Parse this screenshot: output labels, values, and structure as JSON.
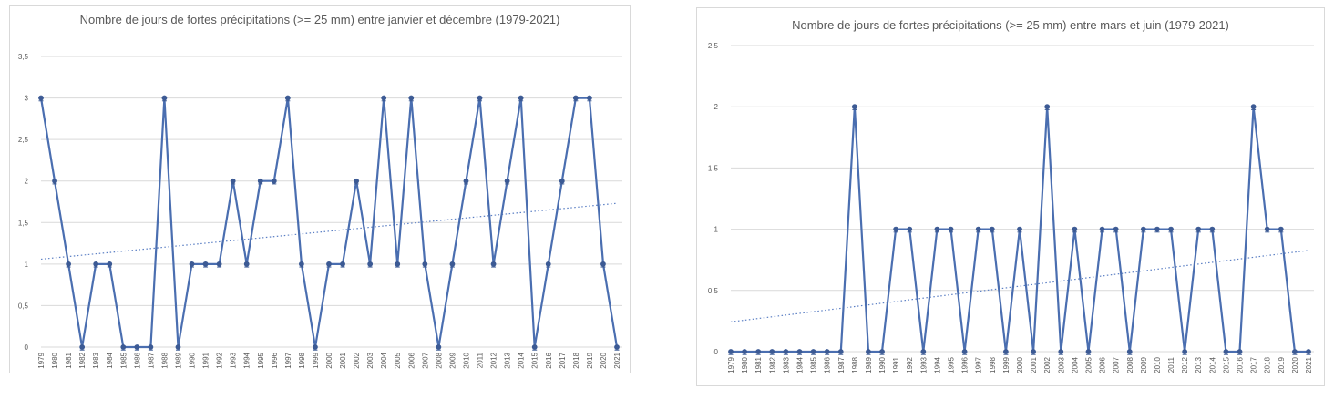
{
  "chart_data": [
    {
      "type": "line",
      "title": "Nombre de jours de fortes précipitations (>= 25 mm) entre janvier et décembre (1979-2021)",
      "categories": [
        "1979",
        "1980",
        "1981",
        "1982",
        "1983",
        "1984",
        "1985",
        "1986",
        "1987",
        "1988",
        "1989",
        "1990",
        "1991",
        "1992",
        "1993",
        "1994",
        "1995",
        "1996",
        "1997",
        "1998",
        "1999",
        "2000",
        "2001",
        "2002",
        "2003",
        "2004",
        "2005",
        "2006",
        "2007",
        "2008",
        "2009",
        "2010",
        "2011",
        "2012",
        "2013",
        "2014",
        "2015",
        "2016",
        "2017",
        "2018",
        "2019",
        "2020",
        "2021"
      ],
      "series": [
        {
          "values": [
            3,
            2,
            1,
            0,
            1,
            1,
            0,
            0,
            0,
            3,
            0,
            1,
            1,
            1,
            2,
            1,
            2,
            2,
            3,
            1,
            0,
            1,
            1,
            2,
            1,
            3,
            1,
            3,
            1,
            0,
            1,
            2,
            3,
            1,
            2,
            3,
            0,
            1,
            2,
            3,
            3,
            1,
            0
          ]
        }
      ],
      "trendline": {
        "type": "linear",
        "style": "dotted"
      },
      "yticks": [
        "0",
        "0,5",
        "1",
        "1,5",
        "2",
        "2,5",
        "3",
        "3,5"
      ],
      "ylim": [
        0,
        3.5
      ],
      "grid": true,
      "colors": {
        "line": "#4a6eb0",
        "marker": "#3c5a94",
        "trend": "#5b7fc4",
        "grid": "#d9d9d9"
      }
    },
    {
      "type": "line",
      "title": "Nombre de jours de fortes précipitations (>= 25 mm) entre mars et juin (1979-2021)",
      "categories": [
        "1979",
        "1980",
        "1981",
        "1982",
        "1983",
        "1984",
        "1985",
        "1986",
        "1987",
        "1988",
        "1989",
        "1990",
        "1991",
        "1992",
        "1993",
        "1994",
        "1995",
        "1996",
        "1997",
        "1998",
        "1999",
        "2000",
        "2001",
        "2002",
        "2003",
        "2004",
        "2005",
        "2006",
        "2007",
        "2008",
        "2009",
        "2010",
        "2011",
        "2012",
        "2013",
        "2014",
        "2015",
        "2016",
        "2017",
        "2018",
        "2019",
        "2020",
        "2021"
      ],
      "series": [
        {
          "values": [
            0,
            0,
            0,
            0,
            0,
            0,
            0,
            0,
            0,
            2,
            0,
            0,
            1,
            1,
            0,
            1,
            1,
            0,
            1,
            1,
            0,
            1,
            0,
            2,
            0,
            1,
            0,
            1,
            1,
            0,
            1,
            1,
            1,
            0,
            1,
            1,
            0,
            0,
            2,
            1,
            1,
            0,
            0
          ]
        }
      ],
      "trendline": {
        "type": "linear",
        "style": "dotted"
      },
      "yticks": [
        "0",
        "0,5",
        "1",
        "1,5",
        "2",
        "2,5"
      ],
      "ylim": [
        0,
        2.5
      ],
      "grid": true,
      "colors": {
        "line": "#4a6eb0",
        "marker": "#3c5a94",
        "trend": "#5b7fc4",
        "grid": "#d9d9d9"
      }
    }
  ]
}
